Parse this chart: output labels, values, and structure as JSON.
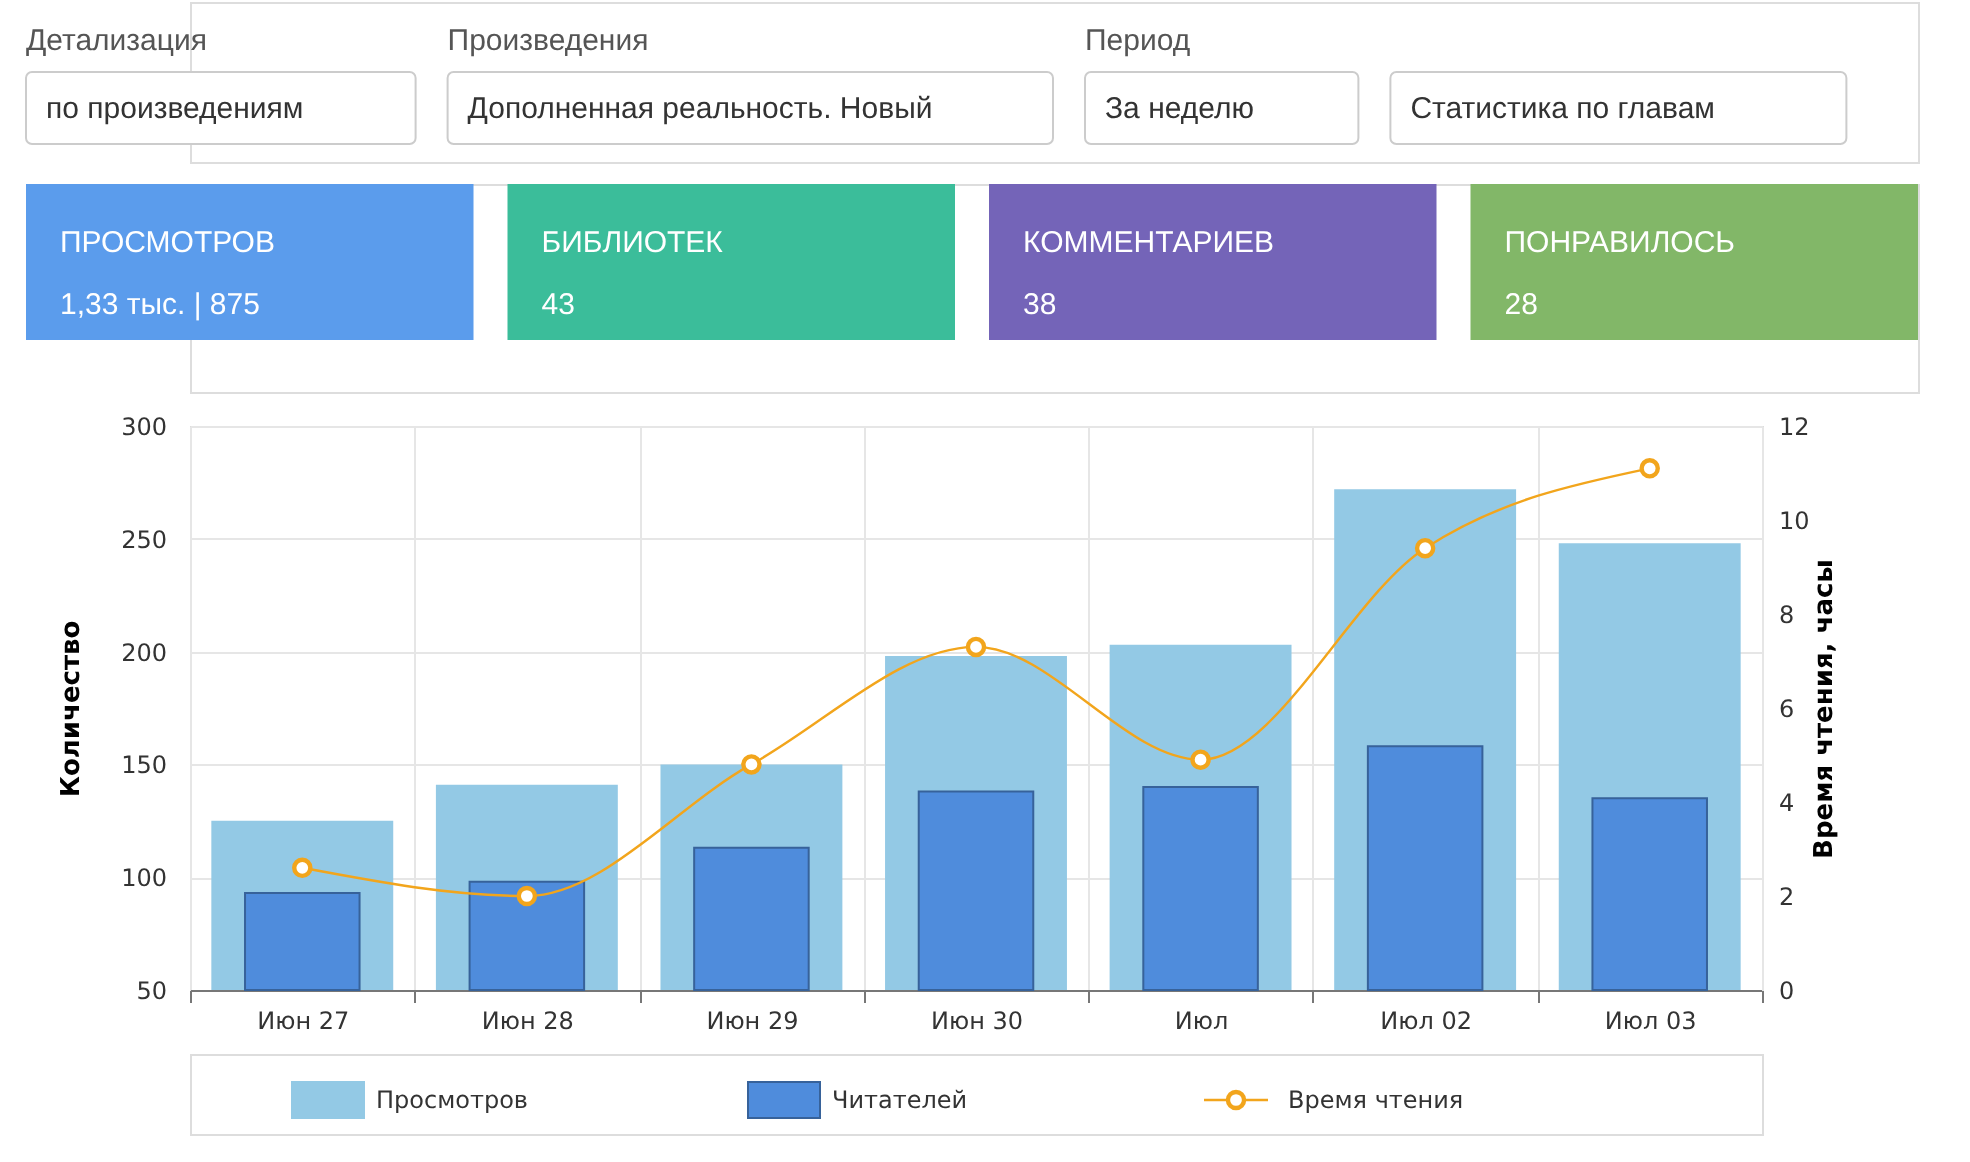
{
  "chart_data": [
    {
      "type": "other",
      "categories": [
        "Детализация",
        "Произведения",
        "Период",
        null
      ],
      "value_labels": [
        "по произведениям",
        "Дополненная реальность. Новый",
        "За неделю",
        "Статистика по главам"
      ]
    },
    {
      "type": "other",
      "categories": [
        "ПРОСМОТРОВ",
        "БИБЛИОТЕК",
        "КОММЕНТАРИЕВ",
        "ПОНРАВИЛОСЬ"
      ],
      "value_labels": [
        "1,33 тыс. | 875",
        "43",
        "38",
        "28"
      ],
      "colors": [
        "#5b9cec",
        "#3bbd9a",
        "#7464b8",
        "#82b768"
      ]
    },
    {
      "type": "bar",
      "categories": [
        "Июн 27",
        "Июн 28",
        "Июн 29",
        "Июн 30",
        "Июл",
        "Июл 02",
        "Июл 03"
      ],
      "series": [
        {
          "name": "Просмотров",
          "color": "#93c9e5",
          "values": [
            125,
            141,
            150,
            198,
            203,
            272,
            248
          ]
        },
        {
          "name": "Читателей",
          "color": "#4f8cdc",
          "values": [
            93,
            98,
            113,
            138,
            140,
            158,
            135
          ]
        },
        {
          "name": "Время чтения",
          "type": "line",
          "axis": "y2",
          "color": "#f2a51c",
          "values": [
            2.6,
            2.0,
            4.8,
            7.3,
            4.9,
            9.4,
            11.1
          ]
        }
      ],
      "ylabel": "Количество",
      "y2label": "Время чтения, часы",
      "ylim": [
        50,
        300
      ],
      "yticks": [
        50,
        100,
        150,
        200,
        250,
        300
      ],
      "y2lim": [
        0,
        12
      ],
      "y2ticks": [
        0,
        2,
        4,
        6,
        8,
        10,
        12
      ],
      "grid": true,
      "legend": "bottom",
      "marker": "circle"
    }
  ]
}
